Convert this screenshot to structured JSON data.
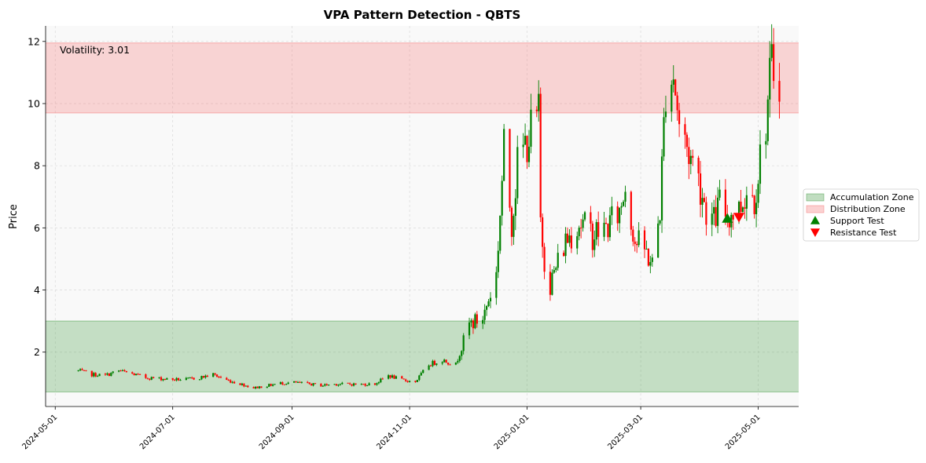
{
  "chart_data": {
    "type": "candlestick",
    "title": "VPA Pattern Detection - QBTS",
    "xlabel": "",
    "ylabel": "Price",
    "ylim": [
      0.25,
      12.5
    ],
    "xlim": [
      "2024-04-26",
      "2025-05-22"
    ],
    "yticks": [
      2,
      4,
      6,
      8,
      10,
      12
    ],
    "xticks": [
      "2024-05-01",
      "2024-07-01",
      "2024-09-01",
      "2024-11-01",
      "2025-01-01",
      "2025-03-01",
      "2025-05-01"
    ],
    "grid": true,
    "legend_position": "center-right",
    "up_color": "#008000",
    "down_color": "#ff0000",
    "zones": [
      {
        "name": "Accumulation Zone",
        "y_from": 0.72,
        "y_to": 3.0,
        "color": "#4a9e4a"
      },
      {
        "name": "Distribution Zone",
        "y_from": 9.7,
        "y_to": 11.95,
        "color": "#f47a7a"
      }
    ],
    "markers": [
      {
        "name": "Support Test",
        "shape": "triangle-up",
        "color": "#008000",
        "date": "2025-04-15",
        "y": 6.3
      },
      {
        "name": "Resistance Test",
        "shape": "triangle-down",
        "color": "#ff0000",
        "date": "2025-04-21",
        "y": 6.35
      }
    ],
    "annotation": "Volatility: 3.01",
    "key_points": [
      [
        "2024-05-13",
        1.4
      ],
      [
        "2024-05-20",
        1.28
      ],
      [
        "2024-05-27",
        1.25
      ],
      [
        "2024-06-03",
        1.4
      ],
      [
        "2024-06-10",
        1.3
      ],
      [
        "2024-06-17",
        1.18
      ],
      [
        "2024-06-24",
        1.15
      ],
      [
        "2024-07-01",
        1.12
      ],
      [
        "2024-07-08",
        1.12
      ],
      [
        "2024-07-15",
        1.18
      ],
      [
        "2024-07-22",
        1.28
      ],
      [
        "2024-07-29",
        1.1
      ],
      [
        "2024-08-05",
        0.98
      ],
      [
        "2024-08-12",
        0.85
      ],
      [
        "2024-08-19",
        0.92
      ],
      [
        "2024-08-26",
        1.0
      ],
      [
        "2024-09-02",
        1.02
      ],
      [
        "2024-09-09",
        0.98
      ],
      [
        "2024-09-16",
        0.93
      ],
      [
        "2024-09-23",
        0.97
      ],
      [
        "2024-09-30",
        0.97
      ],
      [
        "2024-10-07",
        0.96
      ],
      [
        "2024-10-14",
        0.98
      ],
      [
        "2024-10-21",
        1.25
      ],
      [
        "2024-10-28",
        1.1
      ],
      [
        "2024-11-04",
        1.05
      ],
      [
        "2024-11-11",
        1.6
      ],
      [
        "2024-11-18",
        1.75
      ],
      [
        "2024-11-25",
        1.6
      ],
      [
        "2024-12-02",
        2.9
      ],
      [
        "2024-12-09",
        3.1
      ],
      [
        "2024-12-16",
        4.5
      ],
      [
        "2024-12-20",
        8.5
      ],
      [
        "2024-12-24",
        6.2
      ],
      [
        "2024-12-27",
        8.0
      ],
      [
        "2025-01-02",
        9.0
      ],
      [
        "2025-01-07",
        9.6
      ],
      [
        "2025-01-08",
        6.2
      ],
      [
        "2025-01-10",
        5.0
      ],
      [
        "2025-01-13",
        4.2
      ],
      [
        "2025-01-21",
        5.6
      ],
      [
        "2025-01-28",
        6.2
      ],
      [
        "2025-02-04",
        5.8
      ],
      [
        "2025-02-11",
        6.0
      ],
      [
        "2025-02-18",
        6.5
      ],
      [
        "2025-02-21",
        7.4
      ],
      [
        "2025-02-26",
        5.6
      ],
      [
        "2025-03-04",
        5.2
      ],
      [
        "2025-03-07",
        4.8
      ],
      [
        "2025-03-11",
        6.6
      ],
      [
        "2025-03-14",
        10.6
      ],
      [
        "2025-03-18",
        11.0
      ],
      [
        "2025-03-21",
        9.3
      ],
      [
        "2025-03-25",
        8.6
      ],
      [
        "2025-03-31",
        7.6
      ],
      [
        "2025-04-04",
        6.6
      ],
      [
        "2025-04-08",
        6.2
      ],
      [
        "2025-04-11",
        6.8
      ],
      [
        "2025-04-15",
        6.4
      ],
      [
        "2025-04-21",
        6.6
      ],
      [
        "2025-04-25",
        7.2
      ],
      [
        "2025-04-29",
        7.0
      ],
      [
        "2025-05-05",
        9.5
      ],
      [
        "2025-05-08",
        11.2
      ],
      [
        "2025-05-12",
        11.0
      ]
    ]
  }
}
